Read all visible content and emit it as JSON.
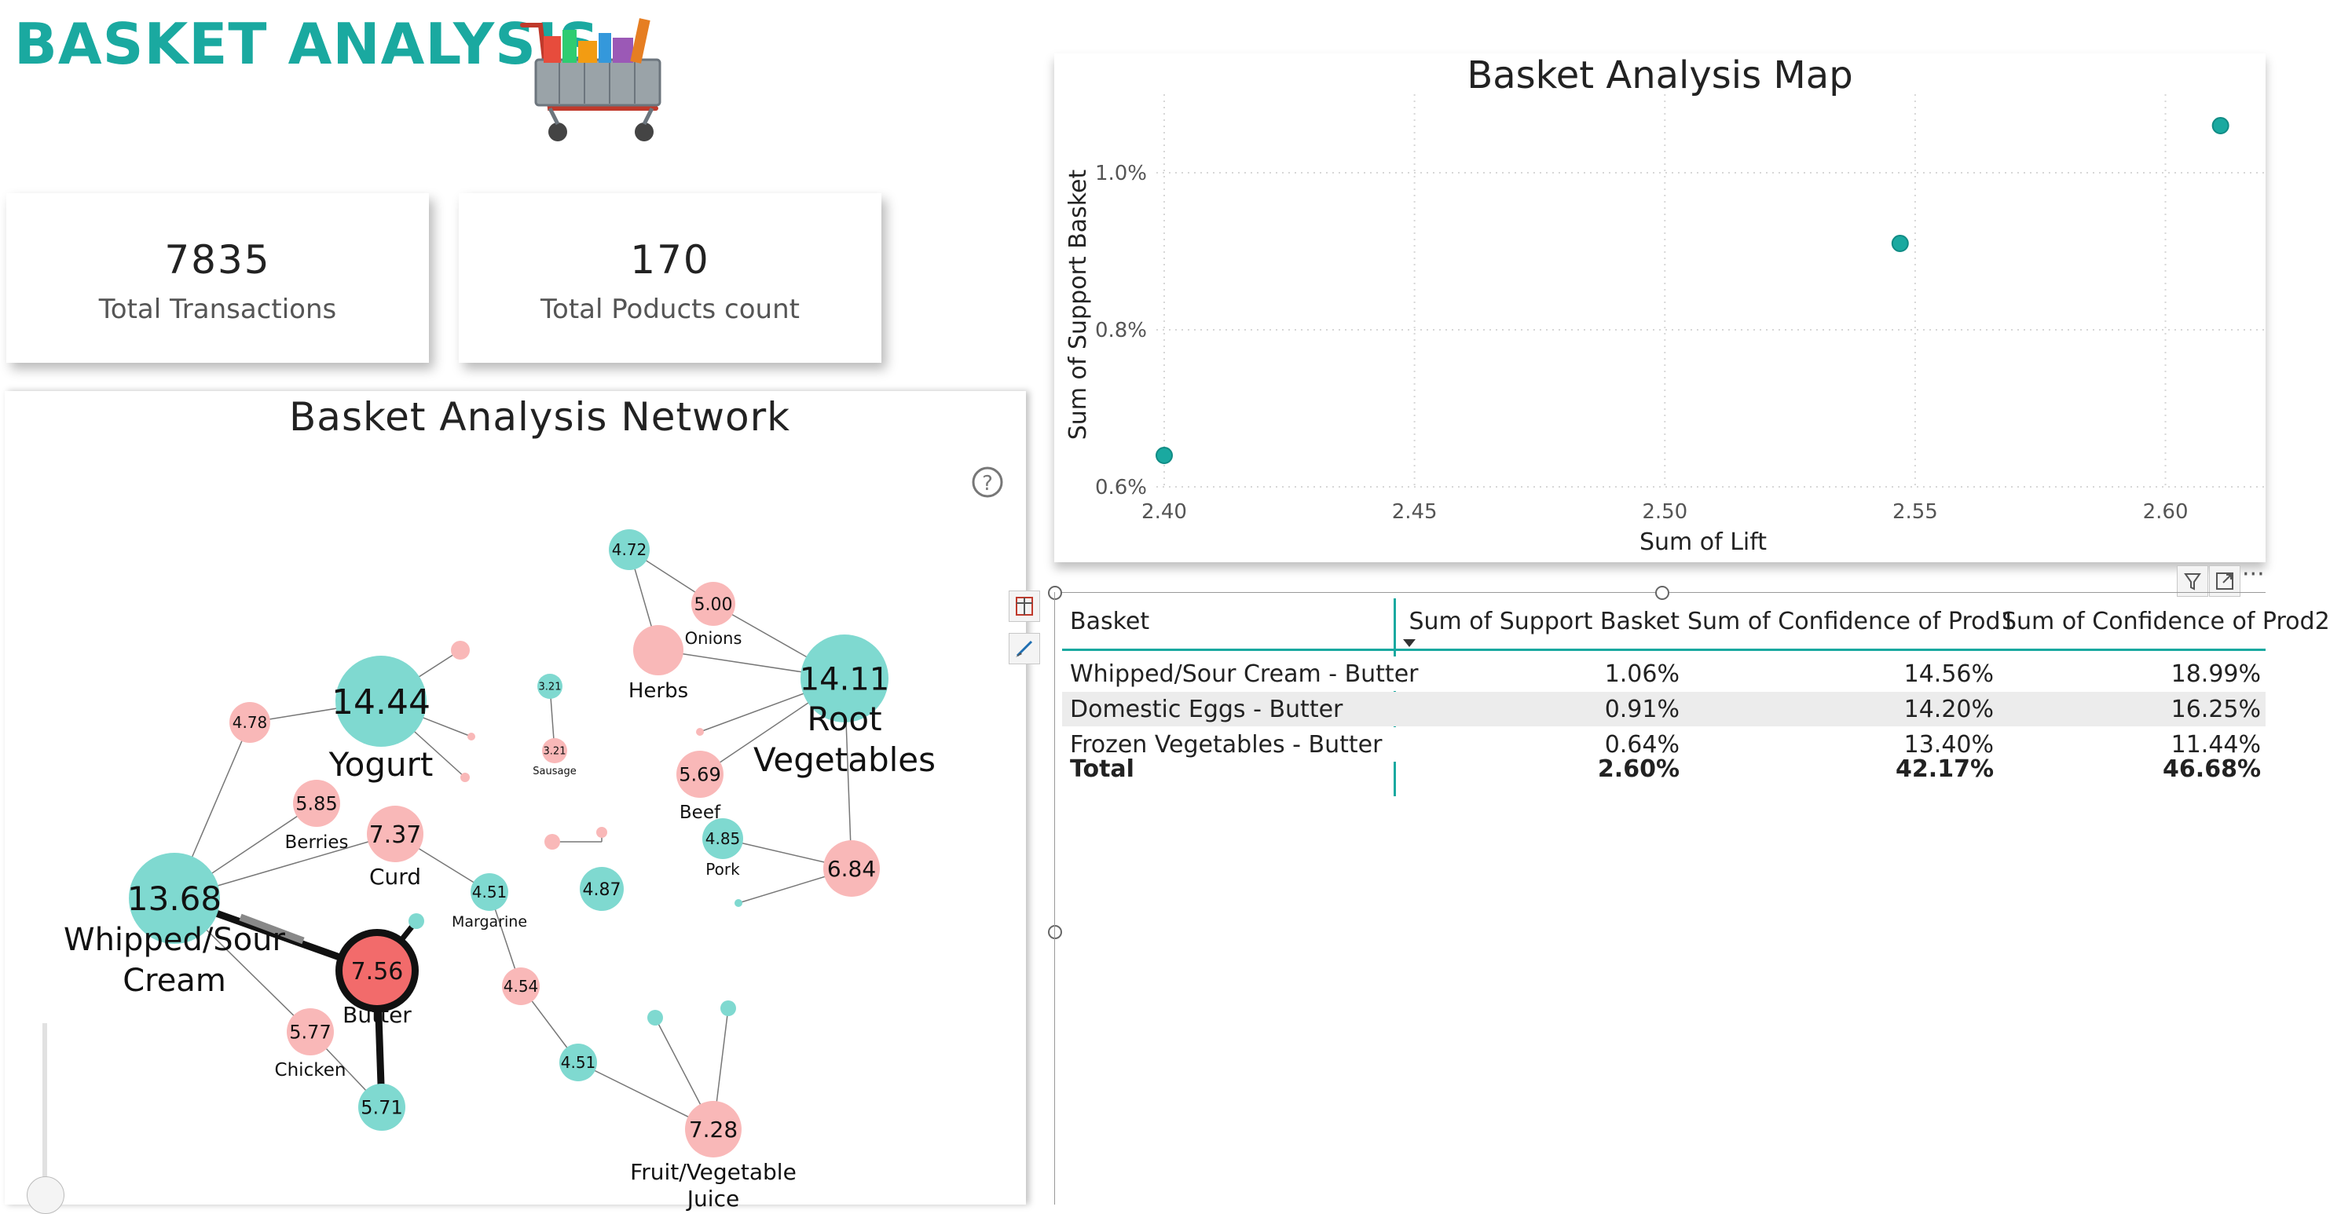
{
  "header": {
    "title": "BASKET ANALYSIS"
  },
  "kpis": [
    {
      "value": "7835",
      "label": "Total Transactions"
    },
    {
      "value": "170",
      "label": "Total Poducts count"
    }
  ],
  "network": {
    "title": "Basket Analysis Network",
    "help_symbol": "?",
    "nodes": [
      {
        "id": "yogurt",
        "value": "14.44",
        "label": "Yogurt",
        "color": "#7fd9d0"
      },
      {
        "id": "root-vegetables",
        "value": "14.11",
        "label": "Root Vegetables",
        "label_lines": [
          "Root",
          "Vegetables"
        ],
        "color": "#7fd9d0"
      },
      {
        "id": "whipped-sour-cream",
        "value": "13.68",
        "label": "Whipped/Sour Cream",
        "label_lines": [
          "Whipped/Sour",
          "Cream"
        ],
        "color": "#7fd9d0"
      },
      {
        "id": "butter",
        "value": "7.56",
        "label": "Butter",
        "color": "#f26b6b"
      },
      {
        "id": "curd",
        "value": "7.37",
        "label": "Curd",
        "color": "#f9b8b8"
      },
      {
        "id": "fruit-vegetable-juice",
        "value": "7.28",
        "label": "Fruit/Vegetable Juice",
        "label_lines": [
          "Fruit/Vegetable",
          "Juice"
        ],
        "color": "#f9b8b8"
      },
      {
        "id": "n684",
        "value": "6.84",
        "label": "",
        "color": "#f9b8b8"
      },
      {
        "id": "berries",
        "value": "5.85",
        "label": "Berries",
        "color": "#f9b8b8"
      },
      {
        "id": "chicken",
        "value": "5.77",
        "label": "Chicken",
        "color": "#f9b8b8"
      },
      {
        "id": "n571",
        "value": "5.71",
        "label": "",
        "color": "#7fd9d0"
      },
      {
        "id": "beef",
        "value": "5.69",
        "label": "Beef",
        "color": "#f9b8b8"
      },
      {
        "id": "onions",
        "value": "5.00",
        "label": "Onions",
        "color": "#f9b8b8"
      },
      {
        "id": "n487",
        "value": "4.87",
        "label": "",
        "color": "#7fd9d0"
      },
      {
        "id": "pork",
        "value": "4.85",
        "label": "Pork",
        "color": "#7fd9d0"
      },
      {
        "id": "n478",
        "value": "4.78",
        "label": "",
        "color": "#f9b8b8"
      },
      {
        "id": "n472",
        "value": "4.72",
        "label": "",
        "color": "#7fd9d0"
      },
      {
        "id": "n454",
        "value": "4.54",
        "label": "",
        "color": "#f9b8b8"
      },
      {
        "id": "margarine",
        "value": "4.51",
        "label": "Margarine",
        "color": "#7fd9d0"
      },
      {
        "id": "n451b",
        "value": "4.51",
        "label": "",
        "color": "#7fd9d0"
      },
      {
        "id": "n321a",
        "value": "3.21",
        "label": "",
        "color": "#7fd9d0"
      },
      {
        "id": "sausage",
        "value": "3.21",
        "label": "Sausage",
        "color": "#f9b8b8"
      },
      {
        "id": "herbs",
        "value": "",
        "label": "Herbs",
        "color": "#f9b8b8"
      }
    ]
  },
  "scatter": {
    "title": "Basket Analysis Map",
    "chart_data": {
      "type": "scatter",
      "title": "Basket Analysis Map",
      "xlabel": "Sum of Lift",
      "ylabel": "Sum of Support Basket",
      "x_ticks": [
        "2.40",
        "2.45",
        "2.50",
        "2.55",
        "2.60"
      ],
      "y_ticks": [
        "0.6%",
        "0.8%",
        "1.0%"
      ],
      "xlim": [
        2.4,
        2.62
      ],
      "ylim": [
        0.6,
        1.1
      ],
      "grid": true,
      "point_color": "#1aa9a0",
      "points": [
        {
          "x": 2.4,
          "y": 0.64
        },
        {
          "x": 2.547,
          "y": 0.91
        },
        {
          "x": 2.611,
          "y": 1.06
        }
      ]
    }
  },
  "table": {
    "columns": [
      "Basket",
      "Sum of Support Basket",
      "Sum of Confidence of Prod1",
      "Sum of Confidence of Prod2"
    ],
    "rows": [
      [
        "Whipped/Sour Cream - Butter",
        "1.06%",
        "14.56%",
        "18.99%"
      ],
      [
        "Domestic Eggs - Butter",
        "0.91%",
        "14.20%",
        "16.25%"
      ],
      [
        "Frozen Vegetables - Butter",
        "0.64%",
        "13.40%",
        "11.44%"
      ]
    ],
    "total": [
      "Total",
      "2.60%",
      "42.17%",
      "46.68%"
    ],
    "more_symbol": "···"
  }
}
